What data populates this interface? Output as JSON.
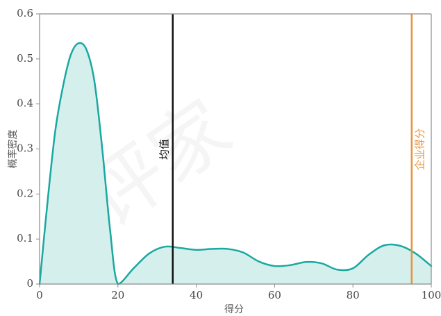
{
  "chart_data": {
    "type": "area",
    "xlabel": "得分",
    "ylabel": "概率密度",
    "xlim": [
      0,
      100
    ],
    "ylim": [
      0,
      0.6
    ],
    "x_ticks": [
      "0",
      "20",
      "40",
      "60",
      "80",
      "100"
    ],
    "y_ticks": [
      "0",
      "0.1",
      "0.2",
      "0.3",
      "0.4",
      "0.5",
      "0.6"
    ],
    "series": [
      {
        "points": [
          [
            0,
            0.0
          ],
          [
            2,
            0.18
          ],
          [
            4,
            0.34
          ],
          [
            6,
            0.44
          ],
          [
            8,
            0.51
          ],
          [
            10,
            0.535
          ],
          [
            12,
            0.52
          ],
          [
            14,
            0.45
          ],
          [
            16,
            0.3
          ],
          [
            18,
            0.12
          ],
          [
            20,
            0.0
          ],
          [
            24,
            0.035
          ],
          [
            28,
            0.068
          ],
          [
            32,
            0.083
          ],
          [
            36,
            0.08
          ],
          [
            40,
            0.076
          ],
          [
            44,
            0.078
          ],
          [
            48,
            0.078
          ],
          [
            52,
            0.07
          ],
          [
            56,
            0.05
          ],
          [
            60,
            0.04
          ],
          [
            64,
            0.042
          ],
          [
            68,
            0.049
          ],
          [
            72,
            0.046
          ],
          [
            76,
            0.032
          ],
          [
            80,
            0.035
          ],
          [
            84,
            0.065
          ],
          [
            88,
            0.086
          ],
          [
            92,
            0.085
          ],
          [
            96,
            0.068
          ],
          [
            100,
            0.04
          ]
        ],
        "line_color": "#1aa8a0",
        "fill_color": "#d5efed"
      }
    ],
    "reference_lines": [
      {
        "x": 34,
        "label": "均值",
        "color": "#111111"
      },
      {
        "x": 95,
        "label": "企业得分",
        "color": "#e8943a"
      }
    ],
    "watermark": "评家",
    "grid": false
  }
}
